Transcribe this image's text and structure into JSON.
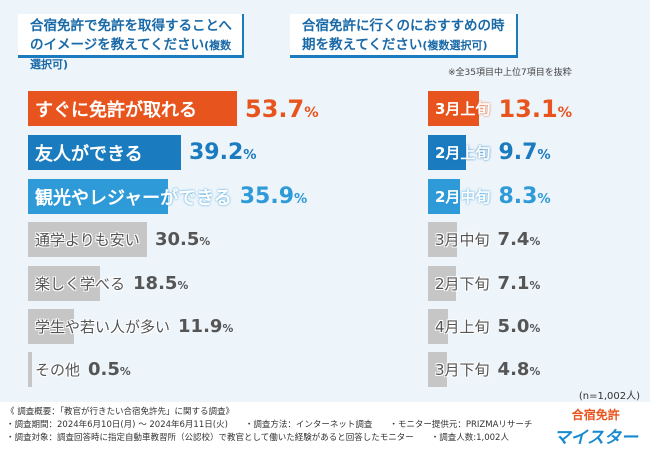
{
  "chart_data": [
    {
      "type": "bar",
      "orientation": "horizontal",
      "title": "合宿免許で免許を取得することへのイメージを教えてください",
      "title_suffix": "(複数選択可)",
      "categories": [
        "すぐに免許が取れる",
        "友人ができる",
        "観光やレジャーができる",
        "通学よりも安い",
        "楽しく学べる",
        "学生や若い人が多い",
        "その他"
      ],
      "values": [
        53.7,
        39.2,
        35.9,
        30.5,
        18.5,
        11.9,
        0.5
      ],
      "unit": "%",
      "colors": [
        "#e8541e",
        "#1a7bbf",
        "#2f9ad8",
        "#c6c6c6",
        "#c6c6c6",
        "#c6c6c6",
        "#c6c6c6"
      ]
    },
    {
      "type": "bar",
      "orientation": "horizontal",
      "title": "合宿免許に行くのにおすすめの時期を教えてください",
      "title_suffix": "(複数選択可)",
      "note": "※全35項目中上位7項目を抜粋",
      "categories": [
        "3月上旬",
        "2月上旬",
        "2月中旬",
        "3月中旬",
        "2月下旬",
        "4月上旬",
        "3月下旬"
      ],
      "values": [
        13.1,
        9.7,
        8.3,
        7.4,
        7.1,
        5.0,
        4.8
      ],
      "unit": "%",
      "colors": [
        "#e8541e",
        "#1a7bbf",
        "#2f9ad8",
        "#c6c6c6",
        "#c6c6c6",
        "#c6c6c6",
        "#c6c6c6"
      ]
    }
  ],
  "sample": "(n=1,002人)",
  "footer": [
    "《 調査概要：「教官が行きたい合宿免許先」に関する調査》",
    "・調査期間：2024年6月10日(月) ～ 2024年6月11日(火)　　・調査方法：インターネット調査　　・モニター提供元：PRIZMAリサーチ",
    "・調査対象：調査回答時に指定自動車教習所（公認校）で教官として働いた経験があると回答したモニター　　・調査人数:1,002人"
  ],
  "logo": [
    "合宿免許",
    "マイスター"
  ]
}
